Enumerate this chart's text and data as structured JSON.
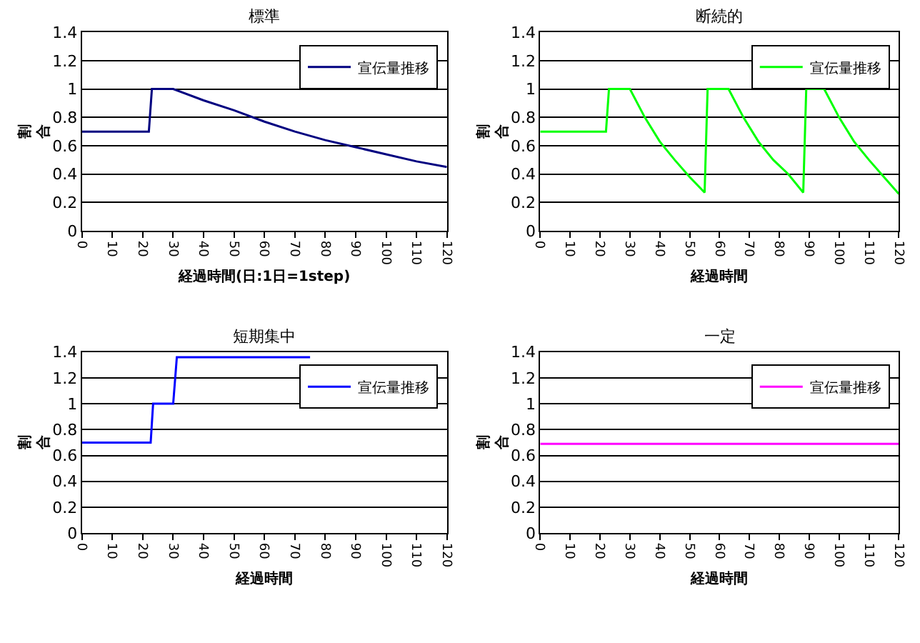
{
  "chart_data": [
    {
      "type": "line",
      "title": "標準",
      "xlabel": "経過時間(日:1日=1step)",
      "ylabel": "割合",
      "xlim": [
        0,
        120
      ],
      "xticks": [
        0,
        10,
        20,
        30,
        40,
        50,
        60,
        70,
        80,
        90,
        100,
        110,
        120
      ],
      "ylim": [
        0,
        1.4
      ],
      "yticks": [
        0,
        0.2,
        0.4,
        0.6,
        0.8,
        1,
        1.2,
        1.4
      ],
      "grid": "y",
      "legend": "top right",
      "marker": "none",
      "series": [
        {
          "name": "宣伝量推移",
          "color": "#000080",
          "x": [
            0,
            22,
            23,
            30,
            40,
            50,
            60,
            70,
            80,
            90,
            100,
            110,
            120
          ],
          "values": [
            0.7,
            0.7,
            1.0,
            1.0,
            0.92,
            0.85,
            0.77,
            0.7,
            0.64,
            0.59,
            0.54,
            0.49,
            0.45
          ]
        }
      ]
    },
    {
      "type": "line",
      "title": "断続的",
      "xlabel": "経過時間",
      "ylabel": "割合",
      "xlim": [
        0,
        120
      ],
      "xticks": [
        0,
        10,
        20,
        30,
        40,
        50,
        60,
        70,
        80,
        90,
        100,
        110,
        120
      ],
      "ylim": [
        0,
        1.4
      ],
      "yticks": [
        0,
        0.2,
        0.4,
        0.6,
        0.8,
        1,
        1.2,
        1.4
      ],
      "grid": "y",
      "legend": "top right",
      "marker": "none",
      "series": [
        {
          "name": "宣伝量推移",
          "color": "#00ff00",
          "x": [
            0,
            22,
            23,
            30,
            35,
            40,
            45,
            50,
            55,
            56,
            63,
            68,
            73,
            78,
            83,
            88,
            89,
            95,
            100,
            105,
            110,
            115,
            120
          ],
          "values": [
            0.7,
            0.7,
            1.0,
            1.0,
            0.8,
            0.63,
            0.5,
            0.38,
            0.27,
            1.0,
            1.0,
            0.8,
            0.63,
            0.5,
            0.4,
            0.27,
            1.0,
            1.0,
            0.8,
            0.63,
            0.5,
            0.38,
            0.26
          ]
        }
      ]
    },
    {
      "type": "line",
      "title": "短期集中",
      "xlabel": "経過時間",
      "ylabel": "割合",
      "xlim": [
        0,
        120
      ],
      "xticks": [
        0,
        10,
        20,
        30,
        40,
        50,
        60,
        70,
        80,
        90,
        100,
        110,
        120
      ],
      "ylim": [
        0,
        1.4
      ],
      "yticks": [
        0,
        0.2,
        0.4,
        0.6,
        0.8,
        1,
        1.2,
        1.4
      ],
      "grid": "y",
      "legend": "top right",
      "marker": "none",
      "series": [
        {
          "name": "宣伝量推移",
          "color": "#0000ff",
          "x": [
            0,
            22.6,
            23.4,
            30,
            31.2,
            75
          ],
          "values": [
            0.7,
            0.7,
            1.0,
            1.0,
            1.36,
            1.36
          ]
        }
      ]
    },
    {
      "type": "line",
      "title": "一定",
      "xlabel": "経過時間",
      "ylabel": "割合",
      "xlim": [
        0,
        120
      ],
      "xticks": [
        0,
        10,
        20,
        30,
        40,
        50,
        60,
        70,
        80,
        90,
        100,
        110,
        120
      ],
      "ylim": [
        0,
        1.4
      ],
      "yticks": [
        0,
        0.2,
        0.4,
        0.6,
        0.8,
        1,
        1.2,
        1.4
      ],
      "grid": "y",
      "legend": "top right",
      "marker": "none",
      "series": [
        {
          "name": "宣伝量推移",
          "color": "#ff00ff",
          "x": [
            0,
            120
          ],
          "values": [
            0.69,
            0.69
          ]
        }
      ]
    }
  ]
}
